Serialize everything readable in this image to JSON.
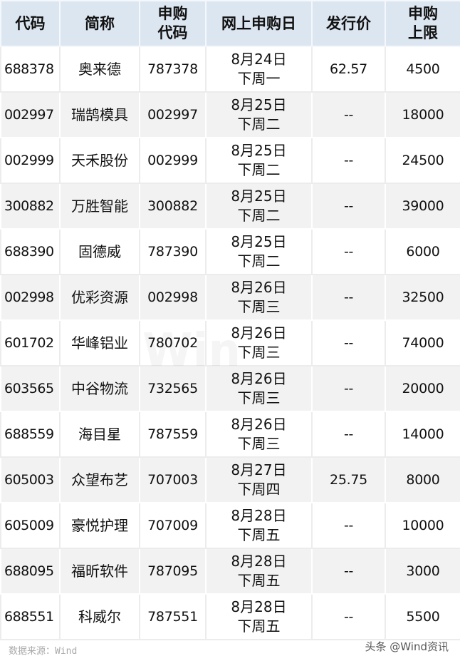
{
  "headers": {
    "code": "代码",
    "name": "简称",
    "sub_code": [
      "申购",
      "代码"
    ],
    "date": "网上申购日",
    "price": "发行价",
    "limit": [
      "申购",
      "上限"
    ]
  },
  "rows": [
    {
      "code": "688378",
      "name": "奥来德",
      "sub_code": "787378",
      "date": "8月24日",
      "weekday": "下周一",
      "price": "62.57",
      "limit": "4500"
    },
    {
      "code": "002997",
      "name": "瑞鹄模具",
      "sub_code": "002997",
      "date": "8月25日",
      "weekday": "下周二",
      "price": "--",
      "limit": "18000"
    },
    {
      "code": "002999",
      "name": "天禾股份",
      "sub_code": "002999",
      "date": "8月25日",
      "weekday": "下周二",
      "price": "--",
      "limit": "24500"
    },
    {
      "code": "300882",
      "name": "万胜智能",
      "sub_code": "300882",
      "date": "8月25日",
      "weekday": "下周二",
      "price": "--",
      "limit": "39000"
    },
    {
      "code": "688390",
      "name": "固德威",
      "sub_code": "787390",
      "date": "8月25日",
      "weekday": "下周二",
      "price": "--",
      "limit": "6000"
    },
    {
      "code": "002998",
      "name": "优彩资源",
      "sub_code": "002998",
      "date": "8月26日",
      "weekday": "下周三",
      "price": "--",
      "limit": "32500"
    },
    {
      "code": "601702",
      "name": "华峰铝业",
      "sub_code": "780702",
      "date": "8月26日",
      "weekday": "下周三",
      "price": "--",
      "limit": "74000"
    },
    {
      "code": "603565",
      "name": "中谷物流",
      "sub_code": "732565",
      "date": "8月26日",
      "weekday": "下周三",
      "price": "--",
      "limit": "20000"
    },
    {
      "code": "688559",
      "name": "海目星",
      "sub_code": "787559",
      "date": "8月26日",
      "weekday": "下周三",
      "price": "--",
      "limit": "14000"
    },
    {
      "code": "605003",
      "name": "众望布艺",
      "sub_code": "707003",
      "date": "8月27日",
      "weekday": "下周四",
      "price": "25.75",
      "limit": "8000"
    },
    {
      "code": "605009",
      "name": "豪悦护理",
      "sub_code": "707009",
      "date": "8月28日",
      "weekday": "下周五",
      "price": "--",
      "limit": "10000"
    },
    {
      "code": "688095",
      "name": "福昕软件",
      "sub_code": "787095",
      "date": "8月28日",
      "weekday": "下周五",
      "price": "--",
      "limit": "3000"
    },
    {
      "code": "688551",
      "name": "科威尔",
      "sub_code": "787551",
      "date": "8月28日",
      "weekday": "下周五",
      "price": "--",
      "limit": "5500"
    }
  ],
  "watermark": "Win",
  "footer": {
    "source": "数据来源：Wind",
    "brand": "头条 @Wind资讯"
  },
  "colors": {
    "header_bg": "#dce6f1",
    "alt_row_bg": "#f2f2f2"
  }
}
